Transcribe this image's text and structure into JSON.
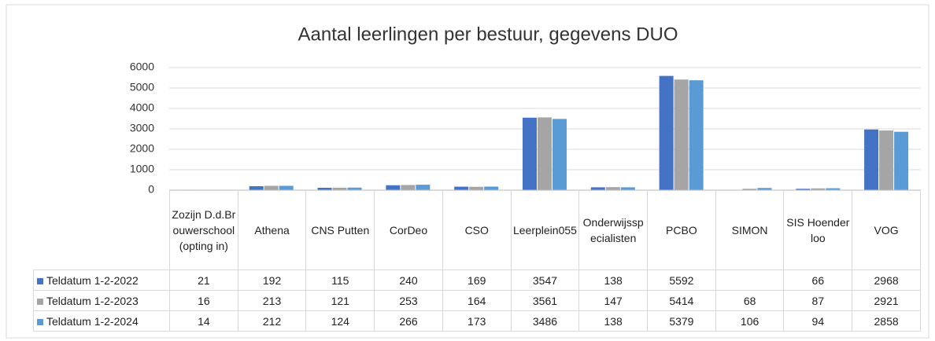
{
  "chart_data": {
    "type": "bar",
    "title": "Aantal leerlingen per bestuur, gegevens DUO",
    "categories": [
      "Zozijn D.d.Brouwerschool(opting in)",
      "Athena",
      "CNS Putten",
      "CorDeo",
      "CSO",
      "Leerplein055",
      "Onderwijsspecialisten",
      "PCBO",
      "SIMON",
      "SIS Hoenderloo",
      "VOG"
    ],
    "series": [
      {
        "name": "Teldatum 1-2-2022",
        "color": "#4472c4",
        "values": [
          21,
          192,
          115,
          240,
          169,
          3547,
          138,
          5592,
          null,
          66,
          2968
        ]
      },
      {
        "name": "Teldatum 1-2-2023",
        "color": "#a5a5a5",
        "values": [
          16,
          213,
          121,
          253,
          164,
          3561,
          147,
          5414,
          68,
          87,
          2921
        ]
      },
      {
        "name": "Teldatum 1-2-2024",
        "color": "#5b9bd5",
        "values": [
          14,
          212,
          124,
          266,
          173,
          3486,
          138,
          5379,
          106,
          94,
          2858
        ]
      }
    ],
    "ylim": [
      0,
      6000
    ],
    "yticks": [
      0,
      1000,
      2000,
      3000,
      4000,
      5000,
      6000
    ],
    "grid": true
  }
}
